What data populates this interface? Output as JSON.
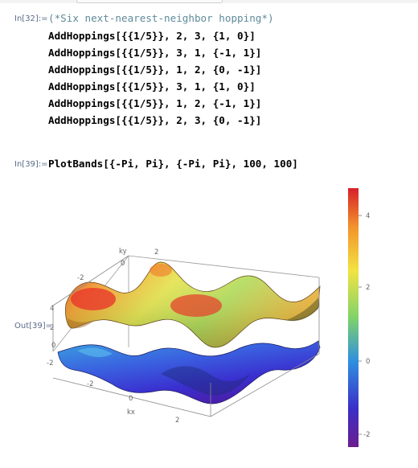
{
  "cells": {
    "in32": {
      "label": "In[32]:=",
      "comment": "(*Six next-nearest-neighbor hopping*)",
      "lines": [
        "AddHoppings[{{1/5}}, 2, 3, {1, 0}]",
        "AddHoppings[{{1/5}}, 3, 1, {-1, 1}]",
        "AddHoppings[{{1/5}}, 1, 2, {0, -1}]",
        "AddHoppings[{{1/5}}, 3, 1, {1, 0}]",
        "AddHoppings[{{1/5}}, 1, 2, {-1, 1}]",
        "AddHoppings[{{1/5}}, 2, 3, {0, -1}]"
      ]
    },
    "in39": {
      "label": "In[39]:=",
      "code": "PlotBands[{-Pi, Pi}, {-Pi, Pi}, 100, 100]"
    },
    "out39": {
      "label": "Out[39]="
    }
  },
  "plot": {
    "axes": {
      "ky": {
        "label": "ky",
        "ticks": [
          "-2",
          "0",
          "2"
        ]
      },
      "kx": {
        "label": "kx",
        "ticks": [
          "-2",
          "0",
          "2"
        ]
      },
      "z": {
        "ticks": [
          "4",
          "2",
          "0",
          "-2"
        ]
      }
    },
    "colorbar": {
      "ticks": [
        "4",
        "2",
        "0",
        "-2"
      ],
      "range": [
        -2.6,
        5.0
      ],
      "colors": [
        "#6b1d8e",
        "#2b3fd8",
        "#2fa6e0",
        "#8fd95a",
        "#f3e342",
        "#f39a2c",
        "#d6262a"
      ]
    }
  }
}
